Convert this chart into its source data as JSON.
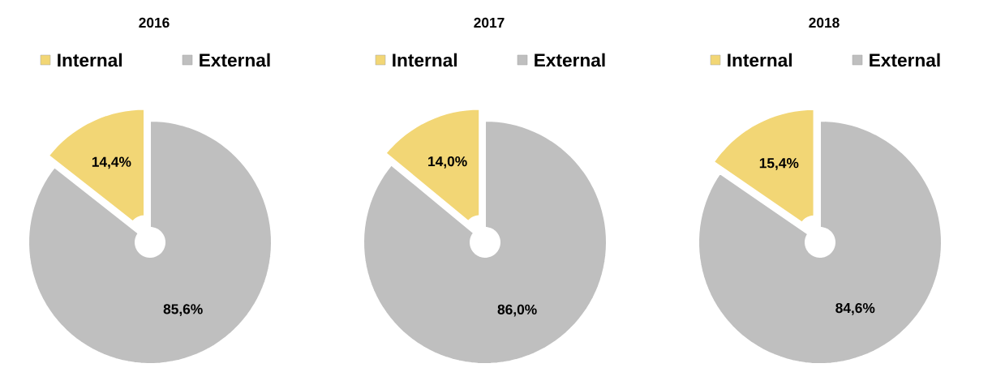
{
  "chart_data": [
    {
      "type": "pie",
      "title": "2016",
      "categories": [
        "Internal",
        "External"
      ],
      "values": [
        14.4,
        85.6
      ],
      "colors": [
        "#f2d675",
        "#bfbfbf"
      ],
      "value_labels": [
        "14,4%",
        "85,6%"
      ],
      "legend": "top"
    },
    {
      "type": "pie",
      "title": "2017",
      "categories": [
        "Internal",
        "External"
      ],
      "values": [
        14.0,
        86.0
      ],
      "colors": [
        "#f2d675",
        "#bfbfbf"
      ],
      "value_labels": [
        "14,0%",
        "86,0%"
      ],
      "legend": "top"
    },
    {
      "type": "pie",
      "title": "2018",
      "categories": [
        "Internal",
        "External"
      ],
      "values": [
        15.4,
        84.6
      ],
      "colors": [
        "#f2d675",
        "#bfbfbf"
      ],
      "value_labels": [
        "15,4%",
        "84,6%"
      ],
      "legend": "top"
    }
  ]
}
